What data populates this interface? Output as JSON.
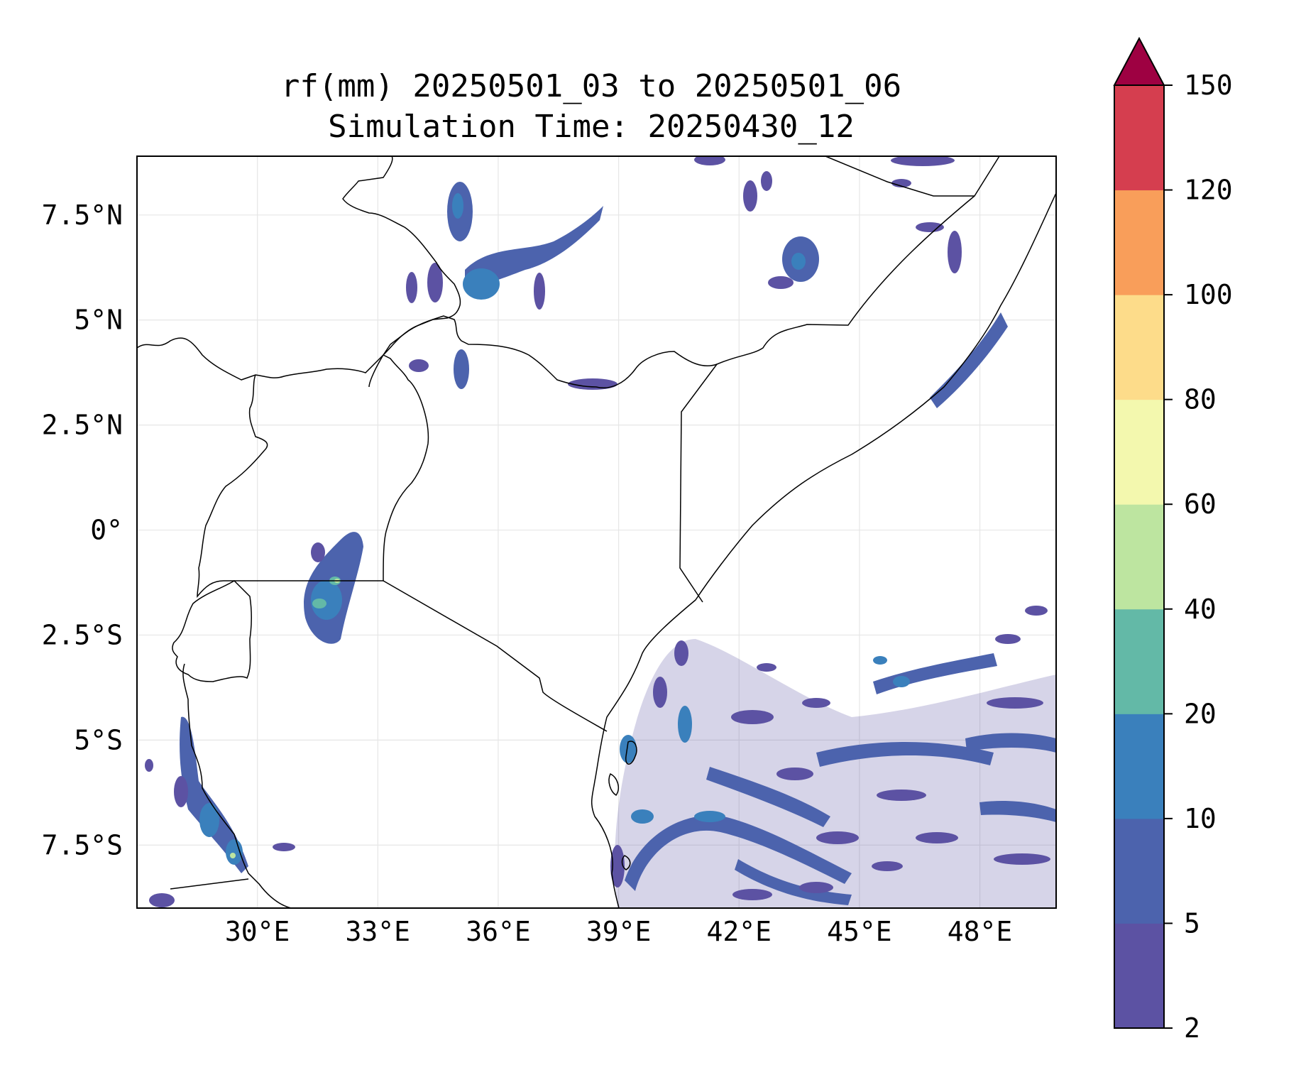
{
  "title_line1": "rf(mm) 20250501_03 to 20250501_06",
  "title_line2": "Simulation Time: 20250430_12",
  "map": {
    "lon_range": [
      27.0,
      49.9
    ],
    "lat_range": [
      -9.0,
      8.9
    ],
    "lon_ticks": [
      30,
      33,
      36,
      39,
      42,
      45,
      48
    ],
    "lon_tick_labels": [
      "30°E",
      "33°E",
      "36°E",
      "39°E",
      "42°E",
      "45°E",
      "48°E"
    ],
    "lat_ticks": [
      7.5,
      5,
      2.5,
      0,
      -2.5,
      -5,
      -7.5
    ],
    "lat_tick_labels": [
      "7.5°N",
      "5°N",
      "2.5°N",
      "0°",
      "2.5°S",
      "5°S",
      "7.5°S"
    ],
    "gridlines": true
  },
  "colorbar": {
    "levels": [
      2,
      5,
      10,
      20,
      40,
      60,
      80,
      100,
      120,
      150
    ],
    "tick_labels": [
      "2",
      "5",
      "10",
      "20",
      "40",
      "60",
      "80",
      "100",
      "120",
      "150"
    ],
    "colors": [
      "#5c52a3",
      "#4c63ad",
      "#3a80bc",
      "#63b9a7",
      "#bde5a0",
      "#f3f8ae",
      "#fddc8a",
      "#f99e5a",
      "#d53e4f"
    ],
    "extend_color": "#9e0142",
    "extend": "max"
  },
  "rain_colors": {
    "light": "#5c52a3",
    "moderate": "#4c63ad",
    "heavy": "#3a80bc",
    "very_heavy": "#63b9a7",
    "peak": "#bde5a0"
  }
}
